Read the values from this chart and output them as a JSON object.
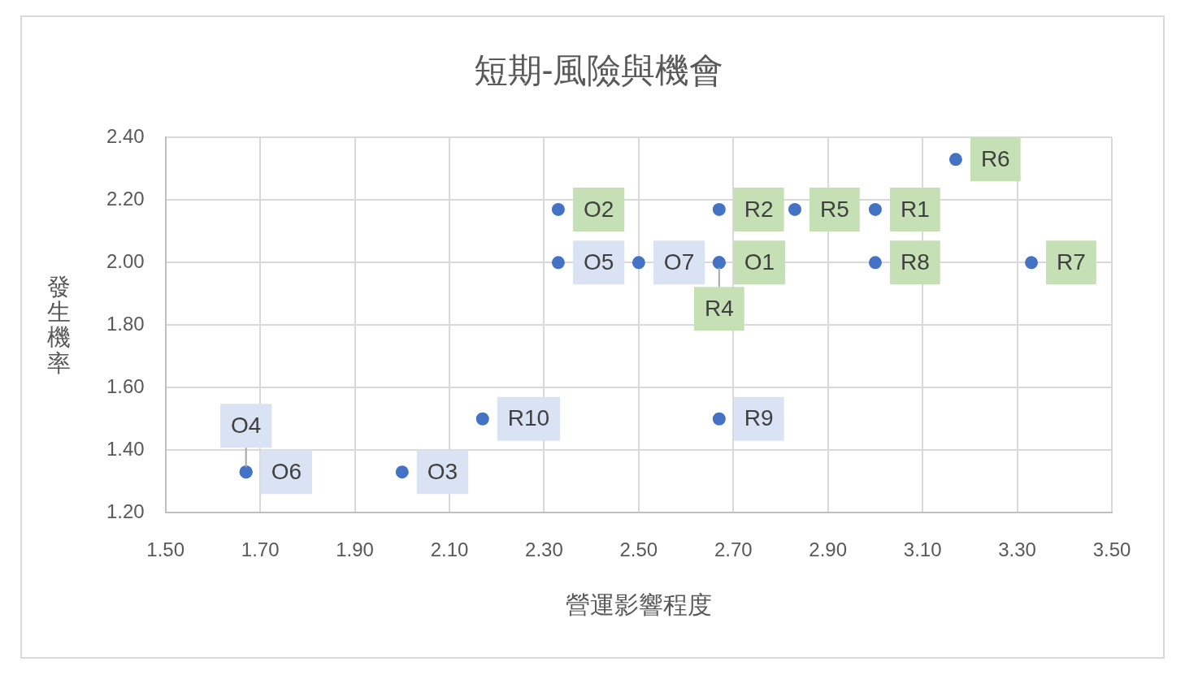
{
  "chart_data": {
    "type": "scatter",
    "title": "短期-風險與機會",
    "xlabel": "營運影響程度",
    "ylabel": "發生機率",
    "xlim": [
      1.5,
      3.5
    ],
    "xticks": [
      {
        "value": 1.5,
        "label": "1.50"
      },
      {
        "value": 1.7,
        "label": "1.70"
      },
      {
        "value": 1.9,
        "label": "1.90"
      },
      {
        "value": 2.1,
        "label": "2.10"
      },
      {
        "value": 2.3,
        "label": "2.30"
      },
      {
        "value": 2.5,
        "label": "2.50"
      },
      {
        "value": 2.7,
        "label": "2.70"
      },
      {
        "value": 2.9,
        "label": "2.90"
      },
      {
        "value": 3.1,
        "label": "3.10"
      },
      {
        "value": 3.3,
        "label": "3.30"
      },
      {
        "value": 3.5,
        "label": "3.50"
      }
    ],
    "ylim": [
      1.2,
      2.4
    ],
    "yticks": [
      {
        "value": 1.2,
        "label": "1.20"
      },
      {
        "value": 1.4,
        "label": "1.40"
      },
      {
        "value": 1.6,
        "label": "1.60"
      },
      {
        "value": 1.8,
        "label": "1.80"
      },
      {
        "value": 2.0,
        "label": "2.00"
      },
      {
        "value": 2.2,
        "label": "2.20"
      },
      {
        "value": 2.4,
        "label": "2.40"
      }
    ],
    "grid": true,
    "marker": "circle",
    "series": [
      {
        "color": "#4472c4",
        "x": [
          2.67,
          2.33,
          3.0,
          2.67,
          2.67,
          2.83,
          3.17,
          3.33,
          3.0
        ],
        "values": [
          2.0,
          2.17,
          2.17,
          2.17,
          2.0,
          2.17,
          2.33,
          2.0,
          2.0
        ],
        "value_labels": [
          "O1",
          "O2",
          "R1",
          "R2",
          "R4",
          "R5",
          "R6",
          "R7",
          "R8"
        ]
      },
      {
        "color": "#4472c4",
        "x": [
          2.0,
          2.33,
          1.67,
          1.67,
          2.5,
          2.67,
          2.17
        ],
        "values": [
          1.33,
          2.0,
          1.33,
          1.33,
          2.0,
          1.5,
          1.5
        ],
        "value_labels": [
          "O3",
          "O5",
          "O6",
          "O4",
          "O7",
          "R9",
          "R10"
        ]
      }
    ]
  }
}
